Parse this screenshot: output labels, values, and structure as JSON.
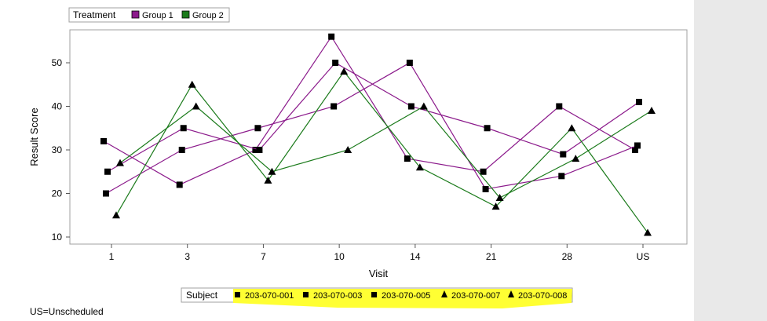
{
  "chart_data": {
    "type": "line",
    "title": "",
    "xlabel": "Visit",
    "ylabel": "Result Score",
    "categories": [
      "1",
      "3",
      "7",
      "10",
      "14",
      "21",
      "28",
      "US"
    ],
    "yticks": [
      10,
      20,
      30,
      40,
      50
    ],
    "ylim": [
      8,
      58
    ],
    "grid": false,
    "treatment_legend": {
      "title": "Treatment",
      "entries": [
        {
          "name": "Group 1",
          "color": "#8b1a8b"
        },
        {
          "name": "Group 2",
          "color": "#1a7a1a"
        }
      ]
    },
    "subject_legend": {
      "title": "Subject",
      "highlight_color": "#ffff33",
      "entries": [
        {
          "name": "203-070-001",
          "marker": "square"
        },
        {
          "name": "203-070-003",
          "marker": "square"
        },
        {
          "name": "203-070-005",
          "marker": "square"
        },
        {
          "name": "203-070-007",
          "marker": "triangle"
        },
        {
          "name": "203-070-008",
          "marker": "triangle"
        }
      ]
    },
    "series": [
      {
        "name": "203-070-001",
        "group": "Group 1",
        "marker": "square",
        "values": [
          32,
          22,
          30,
          56,
          28,
          25,
          40,
          30
        ]
      },
      {
        "name": "203-070-003",
        "group": "Group 1",
        "marker": "square",
        "values": [
          20,
          30,
          35,
          40,
          50,
          21,
          24,
          31
        ]
      },
      {
        "name": "203-070-005",
        "group": "Group 1",
        "marker": "square",
        "values": [
          25,
          35,
          30,
          50,
          40,
          35,
          29,
          41
        ]
      },
      {
        "name": "203-070-007",
        "group": "Group 2",
        "marker": "triangle",
        "values": [
          15,
          45,
          23,
          48,
          26,
          17,
          35,
          11
        ]
      },
      {
        "name": "203-070-008",
        "group": "Group 2",
        "marker": "triangle",
        "values": [
          27,
          40,
          25,
          30,
          40,
          19,
          28,
          39
        ]
      }
    ]
  },
  "footnote": "US=Unscheduled"
}
